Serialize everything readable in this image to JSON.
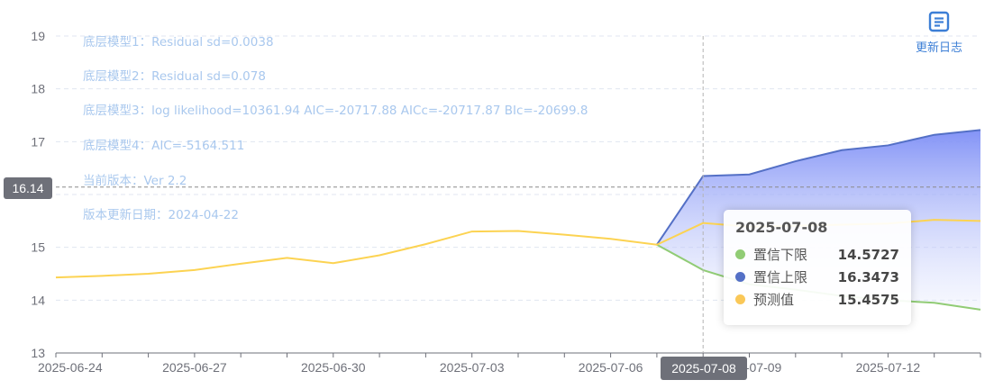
{
  "colors": {
    "forecast_line": "#fcd352",
    "upper_line": "#5470c6",
    "lower_line": "#91cc75",
    "band_fill_top": "#7d8ef6",
    "axis_text": "#6e7079",
    "annotation_text": "#a9c8ee"
  },
  "annotations": [
    "底层模型1：Residual sd=0.0038",
    "底层模型2：Residual sd=0.078",
    "底层模型3：log likelihood=10361.94 AIC=-20717.88 AICc=-20717.87 BIc=-20699.8",
    "底层模型4：AIC=-5164.511",
    "当前版本：Ver 2.2",
    "版本更新日期：2024-04-22"
  ],
  "toolbar": {
    "changelog_label": "更新日志",
    "changelog_icon": "document-icon"
  },
  "axis_pointer": {
    "y_label": "16.14",
    "x_label": "2025-07-08"
  },
  "tooltip": {
    "title": "2025-07-08",
    "rows": [
      {
        "name": "置信下限",
        "value": "14.5727",
        "color": "#91cc75"
      },
      {
        "name": "置信上限",
        "value": "16.3473",
        "color": "#5470c6"
      },
      {
        "name": "预测值",
        "value": "15.4575",
        "color": "#fac858"
      }
    ]
  },
  "chart_data": {
    "type": "line",
    "x": [
      "2025-06-24",
      "2025-06-25",
      "2025-06-26",
      "2025-06-27",
      "2025-06-28",
      "2025-06-29",
      "2025-06-30",
      "2025-07-01",
      "2025-07-02",
      "2025-07-03",
      "2025-07-04",
      "2025-07-05",
      "2025-07-06",
      "2025-07-07",
      "2025-07-08",
      "2025-07-09",
      "2025-07-10",
      "2025-07-11",
      "2025-07-12",
      "2025-07-13",
      "2025-07-14"
    ],
    "x_tick_labels": [
      "2025-06-24",
      "2025-06-27",
      "2025-06-30",
      "2025-07-03",
      "2025-07-06",
      "2025-07-09",
      "2025-07-12"
    ],
    "ylim": [
      13,
      19
    ],
    "y_ticks": [
      13,
      14,
      15,
      16,
      17,
      18,
      19
    ],
    "grid": true,
    "series": [
      {
        "name": "预测值",
        "values": [
          14.43,
          14.46,
          14.5,
          14.57,
          14.69,
          14.8,
          14.7,
          14.85,
          15.06,
          15.3,
          15.31,
          15.24,
          15.16,
          15.05,
          15.46,
          15.39,
          15.41,
          15.43,
          15.45,
          15.52,
          15.5
        ]
      },
      {
        "name": "置信上限",
        "values": [
          null,
          null,
          null,
          null,
          null,
          null,
          null,
          null,
          null,
          null,
          null,
          null,
          null,
          15.05,
          16.35,
          16.38,
          16.63,
          16.84,
          16.93,
          17.13,
          17.22
        ]
      },
      {
        "name": "置信下限",
        "values": [
          null,
          null,
          null,
          null,
          null,
          null,
          null,
          null,
          null,
          null,
          null,
          null,
          null,
          15.05,
          14.57,
          14.3,
          14.2,
          14.08,
          14.0,
          13.95,
          13.82
        ]
      }
    ]
  }
}
